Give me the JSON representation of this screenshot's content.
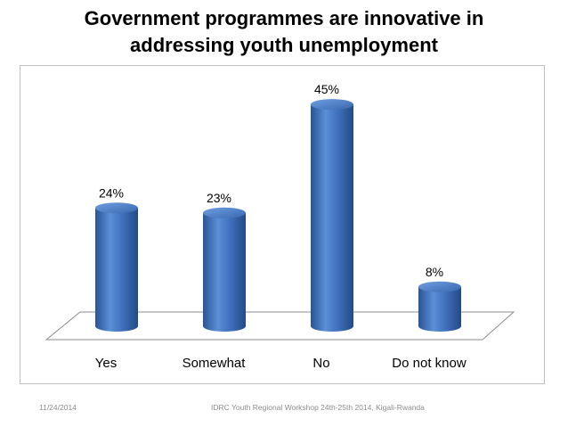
{
  "title_line1": "Government programmes are innovative in",
  "title_line2": "addressing youth unemployment",
  "chart_data": {
    "type": "bar",
    "style": "3d-cylinder",
    "categories": [
      "Yes",
      "Somewhat",
      "No",
      "Do not know"
    ],
    "values": [
      24,
      23,
      45,
      8
    ],
    "data_labels": [
      "24%",
      "23%",
      "45%",
      "8%"
    ],
    "bar_color": "#3f6fb8",
    "ylim": [
      0,
      50
    ],
    "grid": false,
    "legend": "none"
  },
  "footer": {
    "date": "11/24/2014",
    "event": "IDRC Youth Regional Workshop 24th-25th 2014, Kigali-Rwanda"
  }
}
